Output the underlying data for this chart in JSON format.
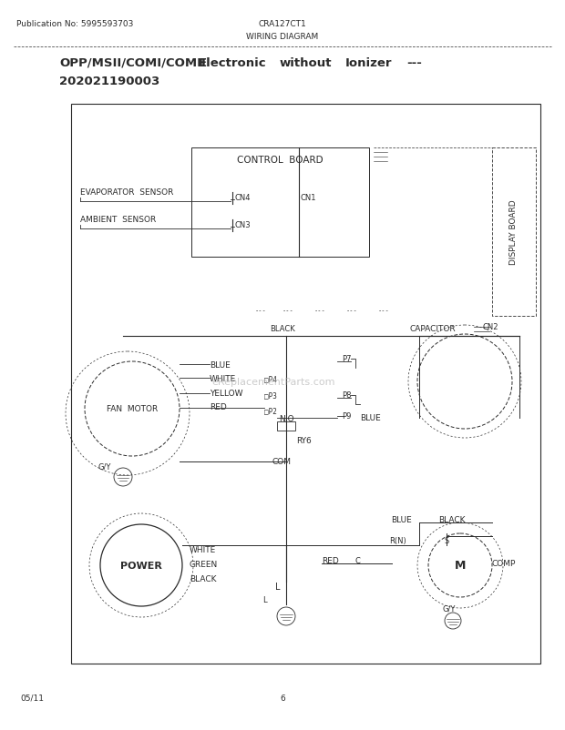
{
  "pub_no": "Publication No: 5995593703",
  "model": "CRA127CT1",
  "diagram_title": "WIRING DIAGRAM",
  "subtitle1": "OPP/MSII/COMI/COMII   Electronic   without   Ionizer   ---",
  "subtitle2": "202021190003",
  "page_date": "05/11",
  "page_num": "6",
  "bg_color": "#ffffff",
  "text_color": "#2a2a2a"
}
